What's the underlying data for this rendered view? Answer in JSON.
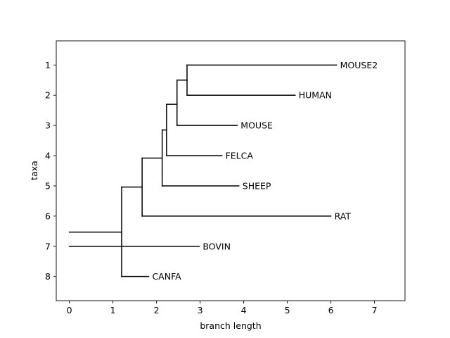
{
  "chart_data": {
    "type": "tree",
    "xlabel": "branch length",
    "ylabel": "taxa",
    "xlim": [
      -0.3,
      7.7
    ],
    "ylim": [
      8.8,
      0.2
    ],
    "x_ticks": [
      0,
      1,
      2,
      3,
      4,
      5,
      6,
      7
    ],
    "y_ticks": [
      1,
      2,
      3,
      4,
      5,
      6,
      7,
      8
    ],
    "root_x": 0,
    "leaves": [
      {
        "label": "MOUSE2",
        "y": 1,
        "x": 6.13
      },
      {
        "label": "HUMAN",
        "y": 2,
        "x": 5.18
      },
      {
        "label": "MOUSE",
        "y": 3,
        "x": 3.85
      },
      {
        "label": "FELCA",
        "y": 4,
        "x": 3.5
      },
      {
        "label": "SHEEP",
        "y": 5,
        "x": 3.89
      },
      {
        "label": "RAT",
        "y": 6,
        "x": 6.0
      },
      {
        "label": "BOVIN",
        "y": 7,
        "x": 2.98
      },
      {
        "label": "CANFA",
        "y": 8,
        "x": 1.82
      }
    ],
    "clades": [
      {
        "x": 1.2,
        "y_low": 5.04,
        "y_high": 8,
        "y_node": 6.53,
        "parent_x": 0
      },
      {
        "x": 1.67,
        "y_low": 4.08,
        "y_high": 6,
        "y_node": 5.04,
        "parent_x": 1.2
      },
      {
        "x": 2.13,
        "y_low": 3.15,
        "y_high": 5,
        "y_node": 4.08,
        "parent_x": 1.67
      },
      {
        "x": 2.23,
        "y_low": 2.3,
        "y_high": 4,
        "y_node": 3.15,
        "parent_x": 2.13
      },
      {
        "x": 2.47,
        "y_low": 1.5,
        "y_high": 3,
        "y_node": 2.3,
        "parent_x": 2.23
      },
      {
        "x": 2.7,
        "y_low": 1,
        "y_high": 2,
        "y_node": 1.5,
        "parent_x": 2.47
      }
    ]
  }
}
